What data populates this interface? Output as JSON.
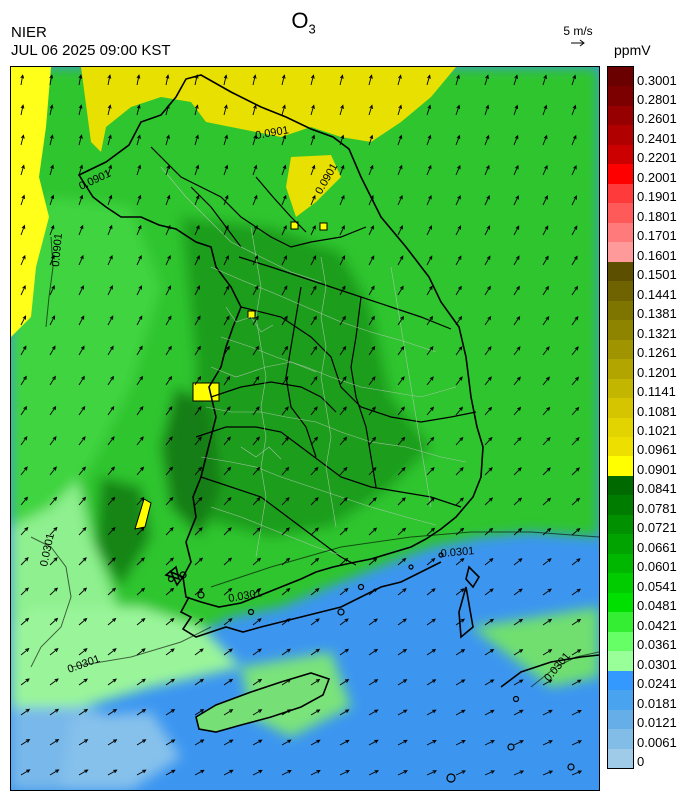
{
  "header": {
    "title_main": "O",
    "title_sub": "3",
    "agency": "NIER",
    "datetime": "JUL 06 2025 09:00 KST",
    "vector_reference": "5 m/s",
    "unit": "ppmV"
  },
  "map": {
    "contour_labels": [
      "0.0301",
      "0.0301",
      "0.0301",
      "0.0301",
      "0.0301",
      "0.0901",
      "0.0901",
      "0.0901",
      "0.0901"
    ],
    "wind_direction": "westerly to south-westerly"
  },
  "legend": {
    "labels": [
      "0.3001",
      "0.2801",
      "0.2601",
      "0.2401",
      "0.2201",
      "0.2001",
      "0.1901",
      "0.1801",
      "0.1701",
      "0.1601",
      "0.1501",
      "0.1441",
      "0.1381",
      "0.1321",
      "0.1261",
      "0.1201",
      "0.1141",
      "0.1081",
      "0.1021",
      "0.0961",
      "0.0901",
      "0.0841",
      "0.0781",
      "0.0721",
      "0.0661",
      "0.0601",
      "0.0541",
      "0.0481",
      "0.0421",
      "0.0361",
      "0.0301",
      "0.0241",
      "0.0181",
      "0.0121",
      "0.0061",
      "0"
    ],
    "colors": [
      "#6b0000",
      "#7d0000",
      "#970000",
      "#b00000",
      "#cc0000",
      "#ff0000",
      "#ff3a3a",
      "#ff5a5a",
      "#ff7a7a",
      "#ff9a9a",
      "#5c5000",
      "#6e6300",
      "#7e7400",
      "#8f8400",
      "#a09400",
      "#b2a500",
      "#c3b600",
      "#d4c500",
      "#e2d400",
      "#eddf00",
      "#ffff00",
      "#006a00",
      "#007d00",
      "#009000",
      "#00a300",
      "#00b700",
      "#00cc00",
      "#00e000",
      "#33ee33",
      "#66ff66",
      "#99ff99",
      "#3399ff",
      "#4aa3ee",
      "#66aee8",
      "#82bde8",
      "#9fcbe8"
    ]
  }
}
